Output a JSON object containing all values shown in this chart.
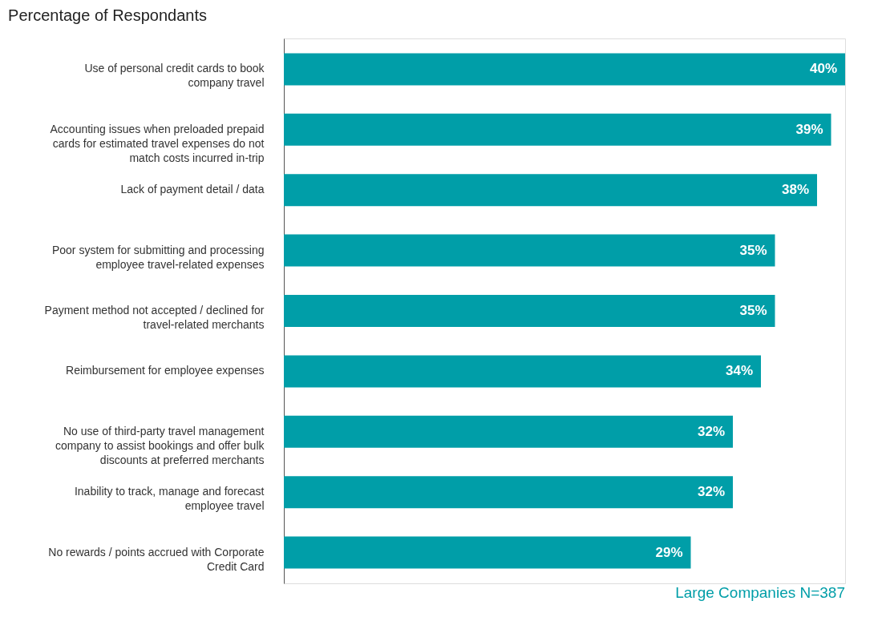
{
  "chart_data": {
    "type": "bar",
    "orientation": "horizontal",
    "title": "Percentage of Respondants",
    "categories": [
      "Use of personal credit cards to book company travel",
      "Accounting issues when preloaded prepaid cards for estimated travel expenses do not match costs incurred in-trip",
      "Lack of payment detail / data",
      "Poor system for submitting and processing employee travel-related expenses",
      "Payment method not accepted / declined for travel-related merchants",
      "Reimbursement for employee expenses",
      "No use of third-party travel management company to assist bookings and offer bulk discounts at preferred merchants",
      "Inability to track, manage and forecast employee travel",
      "No rewards / points accrued with Corporate Credit Card"
    ],
    "values": [
      40,
      39,
      38,
      35,
      35,
      34,
      32,
      32,
      29
    ],
    "value_labels": [
      "40%",
      "39%",
      "38%",
      "35%",
      "35%",
      "34%",
      "32%",
      "32%",
      "29%"
    ],
    "color": "#009ea8",
    "annotations": [
      "Large Companies N=387"
    ]
  }
}
